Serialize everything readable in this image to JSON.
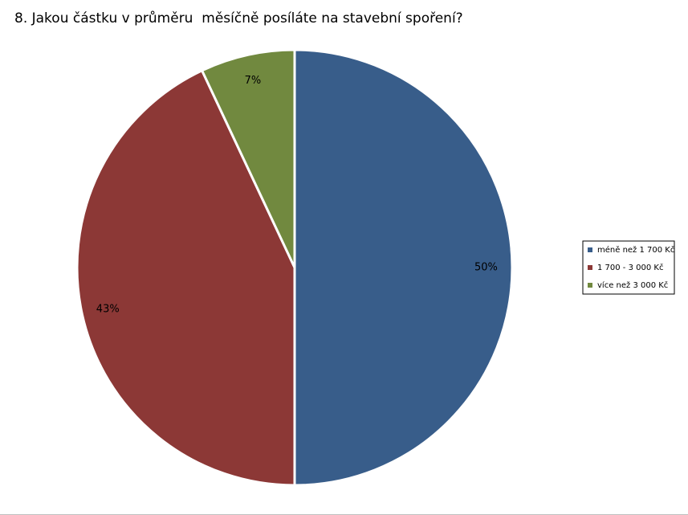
{
  "chart_data": {
    "type": "pie",
    "title": "8. Jakou částku v průměru  měsíčně posíláte na stavební spoření?",
    "categories": [
      "méně než 1 700 Kč",
      "1 700 - 3 000 Kč",
      "více než 3 000 Kč"
    ],
    "values": [
      50,
      43,
      7
    ],
    "value_labels": [
      "50%",
      "43%",
      "7%"
    ],
    "colors": [
      "#385d8a",
      "#8c3836",
      "#71893f"
    ],
    "legend": "right"
  }
}
